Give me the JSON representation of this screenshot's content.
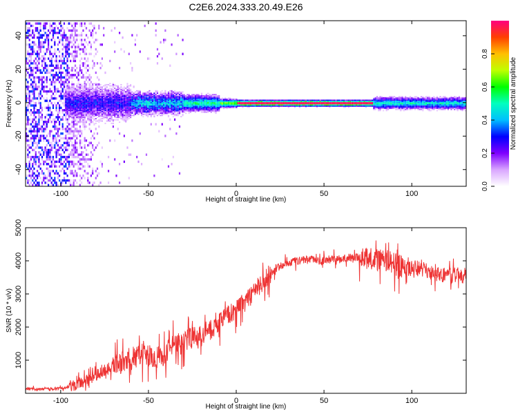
{
  "title": "C2E6.2024.333.20.49.E26",
  "chart_data": [
    {
      "type": "heatmap",
      "xlabel": "Height of straight line (km)",
      "ylabel": "Frequency (Hz)",
      "xlim": [
        -120,
        131
      ],
      "ylim": [
        -50,
        49
      ],
      "x_ticks": [
        -100,
        -50,
        0,
        50,
        100
      ],
      "y_ticks": [
        -40,
        -20,
        0,
        20,
        40
      ],
      "colorbar": {
        "label": "Normalized spectral amplitude",
        "range": [
          0,
          1
        ],
        "ticks": [
          0.0,
          0.2,
          0.4,
          0.6,
          0.8
        ],
        "tick_labels": [
          "0.0",
          "0.2",
          "0.4",
          "0.6",
          "0.8"
        ],
        "colormap": [
          "#ffffff",
          "#d9a6ff",
          "#7f00ff",
          "#0000ff",
          "#00bfff",
          "#00ffbf",
          "#00ff00",
          "#bfff00",
          "#ffbf00",
          "#ff4000",
          "#ff0080"
        ]
      },
      "grid": false,
      "description_points": {
        "noise_region_x": [
          -120,
          -75
        ],
        "signal_band_center_hz": 0,
        "strong_segment_x": [
          0,
          78
        ]
      }
    },
    {
      "type": "line",
      "xlabel": "Height of straight line (km)",
      "ylabel": "SNR (10 * v/v)",
      "xlim": [
        -120,
        131
      ],
      "ylim": [
        0,
        5000
      ],
      "x_ticks": [
        -100,
        -50,
        0,
        50,
        100
      ],
      "y_ticks": [
        1000,
        2000,
        3000,
        4000,
        5000
      ],
      "color": "#ee3333",
      "grid": false,
      "series": [
        {
          "x": [
            -120,
            -110,
            -100,
            -95,
            -90,
            -85,
            -80,
            -75,
            -70,
            -65,
            -60,
            -55,
            -50,
            -45,
            -40,
            -35,
            -30,
            -25,
            -20,
            -15,
            -10,
            -5,
            0,
            5,
            10,
            15,
            20,
            25,
            30,
            35,
            40,
            45,
            50,
            55,
            60,
            65,
            70,
            75,
            80,
            85,
            90,
            95,
            100,
            105,
            110,
            115,
            120,
            125,
            131
          ],
          "values": [
            130,
            130,
            150,
            200,
            300,
            400,
            550,
            700,
            850,
            950,
            1050,
            1150,
            1150,
            1100,
            1200,
            1450,
            1550,
            1700,
            1700,
            1900,
            2100,
            2350,
            2500,
            2750,
            3050,
            3350,
            3650,
            3850,
            3950,
            4000,
            4050,
            4050,
            4000,
            4050,
            4050,
            4100,
            4100,
            4050,
            4050,
            4000,
            3900,
            3800,
            3750,
            3800,
            3650,
            3600,
            3550,
            3550,
            3550
          ]
        }
      ]
    }
  ]
}
